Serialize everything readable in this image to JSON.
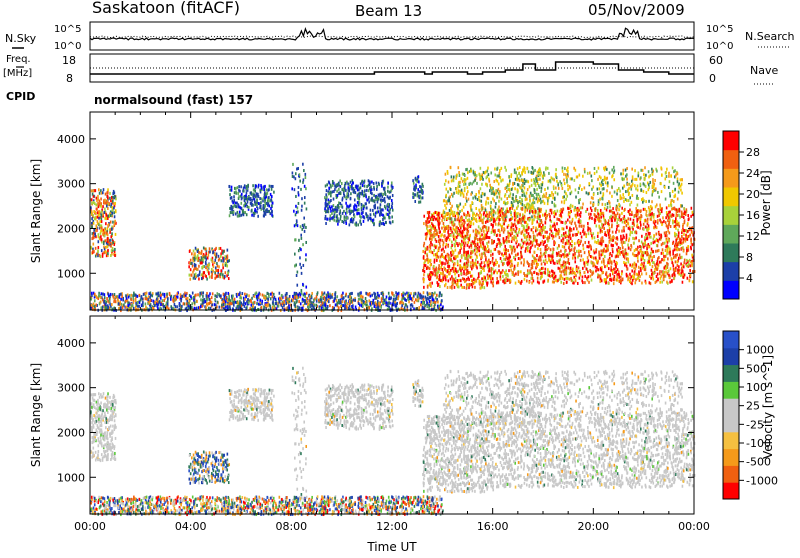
{
  "header": {
    "station": "Saskatoon (fitACF)",
    "beam": "Beam 13",
    "date": "05/Nov/2009"
  },
  "noise_panel": {
    "left_label": "N.Sky",
    "right_label": "N.Search",
    "left_ticks": [
      "10^5",
      "10^0"
    ],
    "right_ticks": [
      "10^5",
      "10^0"
    ]
  },
  "freq_panel": {
    "left_label_1": "Freq.",
    "left_label_2": "[MHz]",
    "right_label": "Nave",
    "left_ticks": [
      "18",
      "8"
    ],
    "right_ticks": [
      "60",
      "0"
    ],
    "cpid_label": "CPID",
    "cpid_value": "normalsound (fast) 157"
  },
  "colors": {
    "power_scale": [
      "#0000ff",
      "#1c3fa8",
      "#2e7a5a",
      "#5fa85a",
      "#a8d23a",
      "#f0c800",
      "#f59a1a",
      "#f06010",
      "#ff0000"
    ],
    "velocity_scale": [
      "#ff0000",
      "#f06010",
      "#f59a1a",
      "#f5c040",
      "#c8c8c8",
      "#c8c8c8",
      "#5ac83a",
      "#2e7a5a",
      "#1c3fa8",
      "#2850c8"
    ]
  },
  "chart_data": [
    {
      "type": "heatmap",
      "title": "",
      "quantity": "Power",
      "ylabel": "Slant Range [km]",
      "ylim": [
        180,
        4600
      ],
      "xlim_hours": [
        0,
        24
      ],
      "y_ticks": [
        "1000",
        "2000",
        "3000",
        "4000"
      ],
      "colorbar_label": "Power [dB]",
      "colorbar_ticks": [
        "4",
        "8",
        "12",
        "16",
        "20",
        "24",
        "28"
      ],
      "colorbar_range": [
        0,
        32
      ]
    },
    {
      "type": "heatmap",
      "title": "",
      "quantity": "Velocity",
      "ylabel": "Slant Range [km]",
      "xlabel": "Time UT",
      "ylim": [
        180,
        4600
      ],
      "xlim_hours": [
        0,
        24
      ],
      "x_ticks": [
        "00:00",
        "04:00",
        "08:00",
        "12:00",
        "16:00",
        "20:00",
        "00:00"
      ],
      "y_ticks": [
        "1000",
        "2000",
        "3000",
        "4000"
      ],
      "colorbar_label": "Velocity [m s^-1]",
      "colorbar_ticks": [
        "1000",
        "500",
        "100",
        "25",
        "-25",
        "-100",
        "-500",
        "-1000"
      ]
    }
  ]
}
